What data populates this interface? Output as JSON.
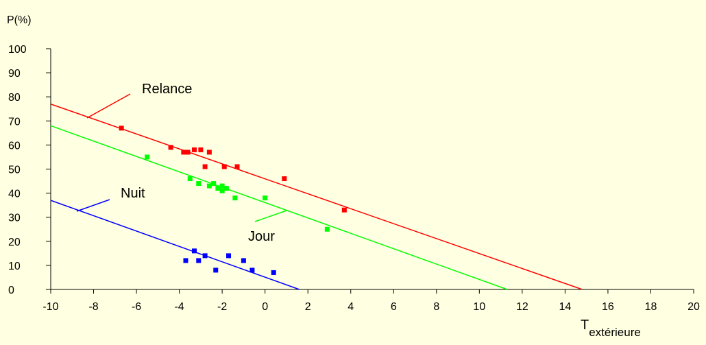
{
  "chart_data": {
    "type": "scatter",
    "ylabel": "P(%)",
    "xlabel": "T",
    "xlabel_sub": "extérieure",
    "xlim": [
      -10,
      20
    ],
    "ylim": [
      0,
      100
    ],
    "x_ticks": [
      -10,
      -8,
      -6,
      -4,
      -2,
      0,
      2,
      4,
      6,
      8,
      10,
      12,
      14,
      16,
      18,
      20
    ],
    "y_ticks": [
      0,
      10,
      20,
      30,
      40,
      50,
      60,
      70,
      80,
      90,
      100
    ],
    "grid": false,
    "series": [
      {
        "name": "Relance",
        "color": "#FF0000",
        "line": [
          [
            -10,
            77
          ],
          [
            14.8,
            0
          ]
        ],
        "points": [
          [
            -6.7,
            67
          ],
          [
            -4.4,
            59
          ],
          [
            -3.8,
            57
          ],
          [
            -3.6,
            57
          ],
          [
            -3.3,
            58
          ],
          [
            -3.0,
            58
          ],
          [
            -2.6,
            57
          ],
          [
            -2.8,
            51
          ],
          [
            -1.9,
            51
          ],
          [
            -1.3,
            51
          ],
          [
            0.9,
            46
          ],
          [
            3.7,
            33
          ]
        ]
      },
      {
        "name": "Jour",
        "color": "#00FF00",
        "line": [
          [
            -10,
            68
          ],
          [
            11.3,
            0
          ]
        ],
        "points": [
          [
            -5.5,
            55
          ],
          [
            -3.5,
            46
          ],
          [
            -3.1,
            44
          ],
          [
            -2.6,
            43
          ],
          [
            -2.4,
            44
          ],
          [
            -2.2,
            42
          ],
          [
            -2.0,
            43
          ],
          [
            -1.8,
            42
          ],
          [
            -2.0,
            41
          ],
          [
            -1.4,
            38
          ],
          [
            0.0,
            38
          ],
          [
            2.9,
            25
          ]
        ]
      },
      {
        "name": "Nuit",
        "color": "#0000FF",
        "line": [
          [
            -10,
            37
          ],
          [
            1.6,
            0
          ]
        ],
        "points": [
          [
            -3.7,
            12
          ],
          [
            -3.3,
            16
          ],
          [
            -3.1,
            12
          ],
          [
            -2.8,
            14
          ],
          [
            -2.3,
            8
          ],
          [
            -1.7,
            14
          ],
          [
            -1.0,
            12
          ],
          [
            -0.6,
            8
          ],
          [
            0.4,
            7
          ]
        ]
      }
    ]
  }
}
